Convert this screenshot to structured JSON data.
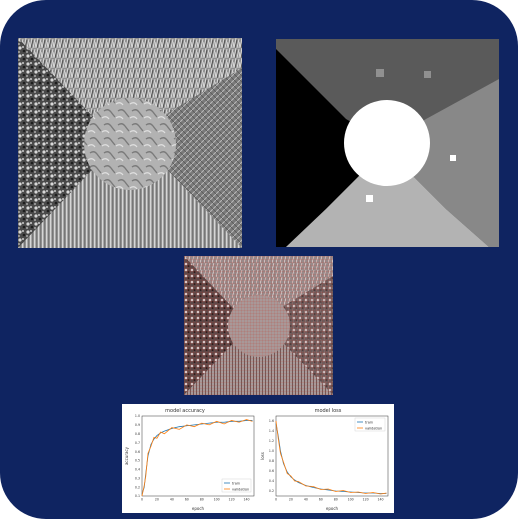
{
  "figure": {
    "texture_image": {
      "description_icon": "texture-mosaic-image"
    },
    "segmentation_image": {
      "description_icon": "segmentation-map-image"
    },
    "overlay_image": {
      "description_icon": "grid-overlay-image"
    }
  },
  "plots": {
    "accuracy": {
      "title": "model accuracy",
      "xlabel": "epoch",
      "ylabel": "accuracy",
      "legend": [
        "train",
        "validation"
      ],
      "yticks": [
        "0.1",
        "0.2",
        "0.3",
        "0.4",
        "0.5",
        "0.6",
        "0.7",
        "0.8",
        "0.9",
        "1.0"
      ],
      "xticks": [
        "0",
        "20",
        "40",
        "60",
        "80",
        "100",
        "120",
        "140"
      ]
    },
    "loss": {
      "title": "model loss",
      "xlabel": "epoch",
      "ylabel": "loss",
      "legend": [
        "train",
        "validation"
      ],
      "yticks": [
        "0.2",
        "0.4",
        "0.6",
        "0.8",
        "1.0",
        "1.2",
        "1.4",
        "1.6"
      ],
      "xticks": [
        "0",
        "20",
        "40",
        "60",
        "80",
        "100",
        "120",
        "140"
      ]
    }
  },
  "chart_data": [
    {
      "type": "line",
      "title": "model accuracy",
      "xlabel": "epoch",
      "ylabel": "accuracy",
      "xlim": [
        0,
        150
      ],
      "ylim": [
        0.1,
        1.0
      ],
      "legend": "bottom-right",
      "series": [
        {
          "name": "train",
          "color": "#1f77b4",
          "x": [
            0,
            3,
            5,
            8,
            12,
            16,
            20,
            25,
            30,
            40,
            50,
            60,
            70,
            80,
            90,
            100,
            110,
            120,
            130,
            140,
            148
          ],
          "y": [
            0.12,
            0.2,
            0.35,
            0.55,
            0.68,
            0.74,
            0.78,
            0.81,
            0.83,
            0.86,
            0.88,
            0.89,
            0.9,
            0.91,
            0.92,
            0.93,
            0.93,
            0.94,
            0.94,
            0.95,
            0.95
          ]
        },
        {
          "name": "validation",
          "color": "#ff7f0e",
          "x": [
            0,
            3,
            5,
            8,
            12,
            16,
            20,
            25,
            30,
            40,
            50,
            60,
            70,
            80,
            90,
            100,
            110,
            120,
            130,
            140,
            148
          ],
          "y": [
            0.1,
            0.22,
            0.32,
            0.58,
            0.66,
            0.76,
            0.75,
            0.82,
            0.8,
            0.87,
            0.85,
            0.9,
            0.88,
            0.92,
            0.9,
            0.94,
            0.91,
            0.95,
            0.93,
            0.96,
            0.94
          ]
        }
      ]
    },
    {
      "type": "line",
      "title": "model loss",
      "xlabel": "epoch",
      "ylabel": "loss",
      "xlim": [
        0,
        150
      ],
      "ylim": [
        0.1,
        1.7
      ],
      "legend": "top-right",
      "series": [
        {
          "name": "train",
          "color": "#1f77b4",
          "x": [
            0,
            3,
            6,
            10,
            15,
            20,
            25,
            30,
            40,
            50,
            60,
            70,
            80,
            90,
            100,
            110,
            120,
            130,
            140,
            148
          ],
          "y": [
            1.55,
            1.3,
            1.0,
            0.75,
            0.58,
            0.48,
            0.42,
            0.37,
            0.31,
            0.27,
            0.24,
            0.22,
            0.2,
            0.19,
            0.18,
            0.17,
            0.16,
            0.16,
            0.15,
            0.15
          ]
        },
        {
          "name": "validation",
          "color": "#ff7f0e",
          "x": [
            0,
            3,
            6,
            10,
            15,
            20,
            25,
            30,
            40,
            50,
            60,
            70,
            80,
            90,
            100,
            110,
            120,
            130,
            140,
            148
          ],
          "y": [
            1.6,
            1.25,
            0.95,
            0.78,
            0.55,
            0.5,
            0.4,
            0.39,
            0.3,
            0.29,
            0.23,
            0.24,
            0.19,
            0.21,
            0.17,
            0.18,
            0.15,
            0.17,
            0.14,
            0.16
          ]
        }
      ]
    }
  ]
}
